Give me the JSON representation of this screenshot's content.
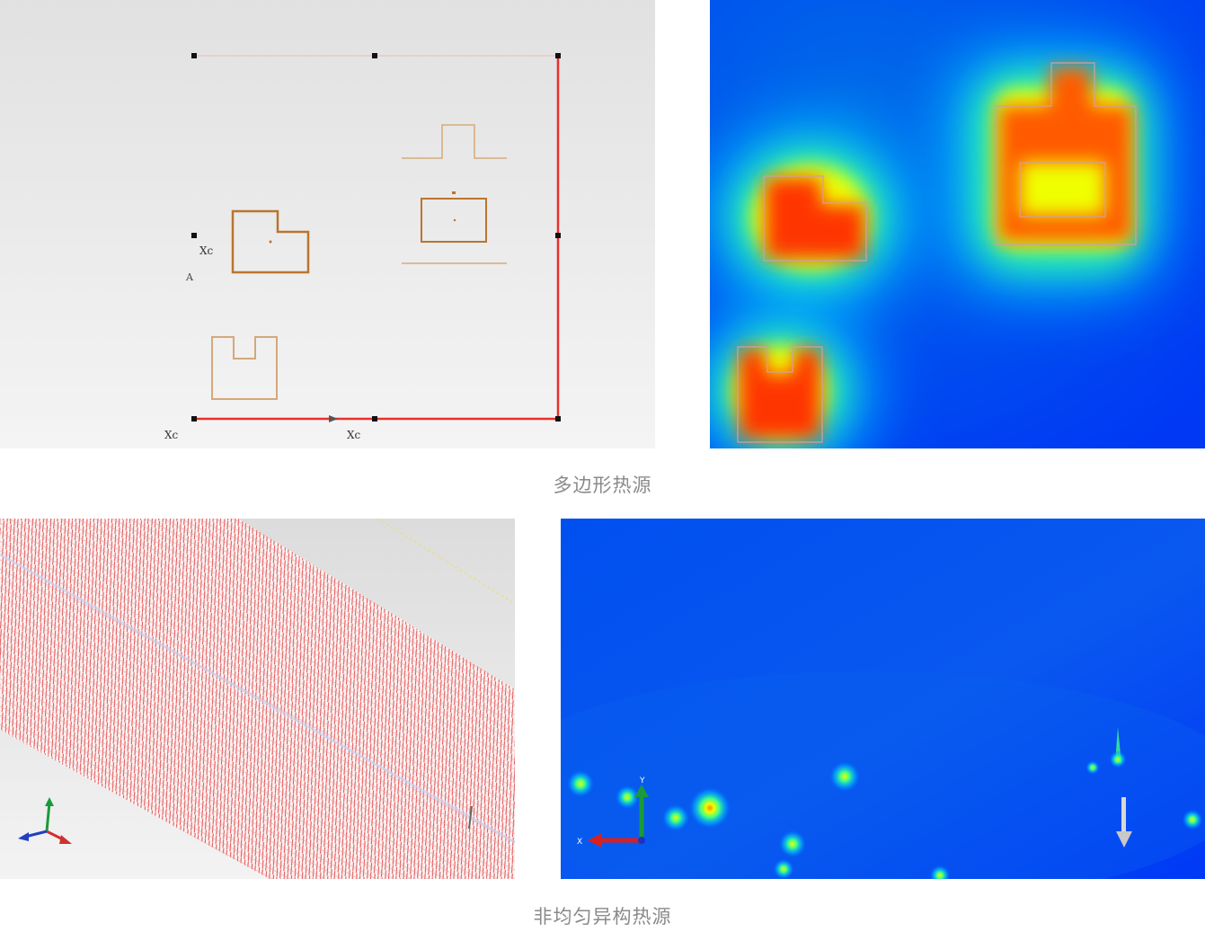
{
  "captions": {
    "polygon": "多边形热源",
    "nonuniform": "非均匀异构热源"
  },
  "cad_sketch": {
    "dimension_labels": [
      "Xc",
      "Xc",
      "Xc"
    ],
    "axis_label": "A",
    "boundary_color": "#e8302c",
    "shape_color": "#b9752e"
  },
  "mesh_view": {
    "mesh_color": "#e04848",
    "triad_axes": [
      "y",
      "x",
      "z"
    ]
  },
  "heatmap_view": {
    "triad_labels": {
      "y": "Y",
      "x": "X"
    },
    "colormap": [
      "#0044f0",
      "#00c8ff",
      "#3cff8c",
      "#f0ff00",
      "#ff8800",
      "#ff2a00"
    ]
  },
  "icons": {
    "triad": "axis-triad-icon",
    "arrow": "down-arrow-icon"
  }
}
